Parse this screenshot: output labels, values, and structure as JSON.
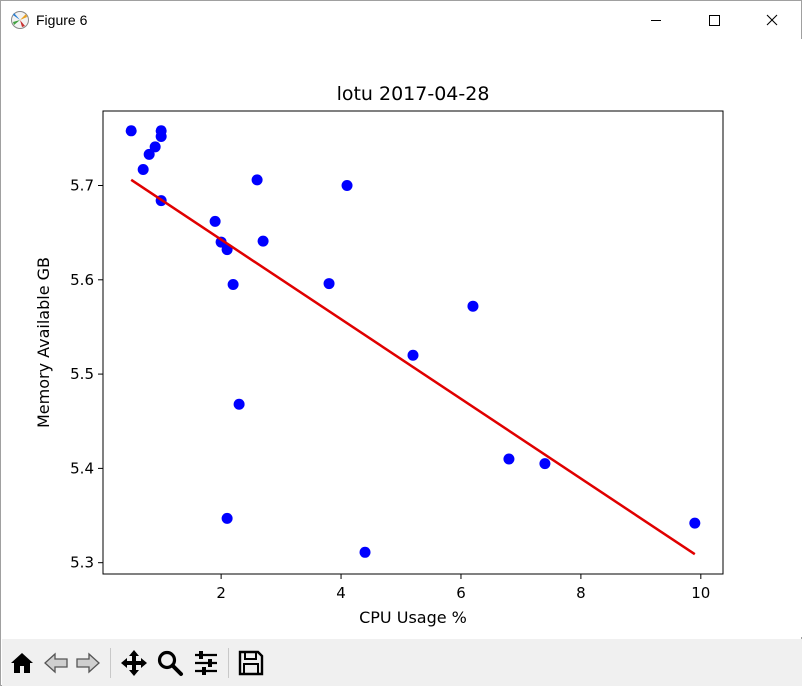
{
  "window": {
    "title": "Figure 6",
    "app_icon": "matplotlib-icon",
    "controls": [
      "minimize-icon",
      "maximize-icon",
      "close-icon"
    ]
  },
  "toolbar": {
    "buttons": [
      {
        "name": "home-button",
        "icon": "home-icon"
      },
      {
        "name": "back-button",
        "icon": "arrow-left-icon"
      },
      {
        "name": "forward-button",
        "icon": "arrow-right-icon"
      },
      {
        "name": "pan-button",
        "icon": "move-icon"
      },
      {
        "name": "zoom-button",
        "icon": "magnifier-icon"
      },
      {
        "name": "configure-subplots-button",
        "icon": "sliders-icon"
      },
      {
        "name": "save-button",
        "icon": "floppy-disk-icon"
      }
    ]
  },
  "chart_data": {
    "type": "scatter",
    "title": "lotu 2017-04-28",
    "xlabel": "CPU Usage %",
    "ylabel": "Memory Available GB",
    "xlim": [
      0.03,
      10.37
    ],
    "ylim": [
      5.288,
      5.779
    ],
    "xticks": [
      2,
      4,
      6,
      8,
      10
    ],
    "yticks": [
      5.3,
      5.4,
      5.5,
      5.6,
      5.7
    ],
    "xtick_labels": [
      "2",
      "4",
      "6",
      "8",
      "10"
    ],
    "ytick_labels": [
      "5.3",
      "5.4",
      "5.5",
      "5.6",
      "5.7"
    ],
    "grid": false,
    "points_color": "#0000ff",
    "series": [
      {
        "x": [
          0.5,
          0.7,
          0.8,
          0.9,
          1.0,
          1.0,
          1.0,
          1.9,
          2.0,
          2.1,
          2.1,
          2.2,
          2.3,
          2.6,
          2.7,
          3.8,
          4.1,
          4.4,
          5.2,
          6.2,
          6.8,
          7.4,
          9.9
        ],
        "y": [
          5.758,
          5.717,
          5.733,
          5.741,
          5.758,
          5.752,
          5.684,
          5.662,
          5.64,
          5.632,
          5.347,
          5.595,
          5.468,
          5.706,
          5.641,
          5.596,
          5.7,
          5.311,
          5.52,
          5.572,
          5.41,
          5.405,
          5.342
        ]
      }
    ],
    "trendline": {
      "color": "#e00000",
      "x": [
        0.5,
        9.9
      ],
      "y": [
        5.706,
        5.309
      ]
    }
  }
}
